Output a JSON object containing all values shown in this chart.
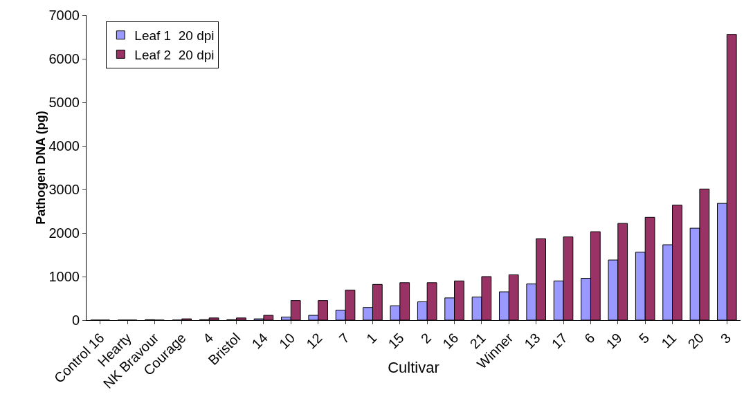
{
  "chart_data": {
    "type": "bar",
    "xlabel": "Cultivar",
    "ylabel": "Pathogen DNA (pg)",
    "categories": [
      "Control 16",
      "Hearty",
      "NK Bravour",
      "Courage",
      "4",
      "Bristol",
      "14",
      "10",
      "12",
      "7",
      "1",
      "15",
      "2",
      "16",
      "21",
      "Winner",
      "13",
      "17",
      "6",
      "19",
      "5",
      "11",
      "20",
      "3"
    ],
    "series": [
      {
        "name": "Leaf 1  20 dpi",
        "color": "#9999ff",
        "values": [
          0,
          0,
          10,
          0,
          10,
          10,
          30,
          70,
          110,
          230,
          290,
          330,
          420,
          510,
          530,
          650,
          830,
          900,
          960,
          1380,
          1560,
          1730,
          2110,
          2680
        ]
      },
      {
        "name": "Leaf 2  20 dpi",
        "color": "#993366",
        "values": [
          0,
          0,
          0,
          30,
          50,
          50,
          110,
          450,
          450,
          690,
          820,
          860,
          860,
          900,
          1000,
          1040,
          1870,
          1910,
          2030,
          2220,
          2360,
          2640,
          3010,
          6560
        ]
      }
    ],
    "ylim": [
      0,
      7000
    ],
    "yticks": [
      0,
      1000,
      2000,
      3000,
      4000,
      5000,
      6000,
      7000
    ],
    "legend": "top left"
  }
}
